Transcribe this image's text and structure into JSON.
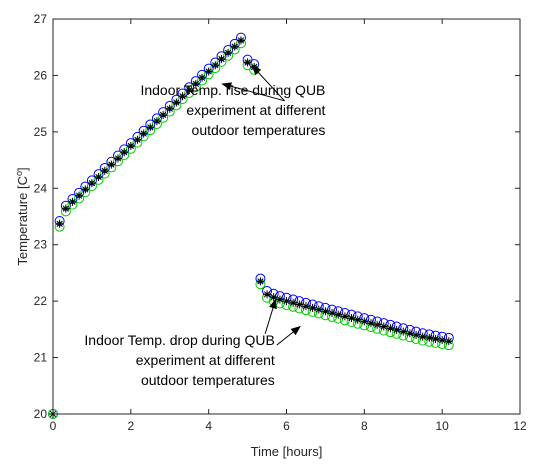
{
  "chart_data": {
    "type": "scatter",
    "xlabel": "Time [hours]",
    "ylabel": "Temperature [C",
    "ylabel_superscript": "o",
    "ylabel_suffix": "]",
    "xlim": [
      0,
      12
    ],
    "ylim": [
      20,
      27
    ],
    "x_ticks": [
      0,
      2,
      4,
      6,
      8,
      10,
      12
    ],
    "y_ticks": [
      20,
      21,
      22,
      23,
      24,
      25,
      26,
      27
    ],
    "x_tick_labels": [
      "0",
      "2",
      "4",
      "6",
      "8",
      "10",
      "12"
    ],
    "y_tick_labels": [
      "20",
      "21",
      "22",
      "23",
      "24",
      "25",
      "26",
      "27"
    ],
    "grid": false,
    "series": [
      {
        "marker": "circle",
        "color": "#0000ff",
        "points": [
          [
            0,
            20.0
          ],
          [
            0.17,
            23.42
          ],
          [
            0.33,
            23.69
          ],
          [
            0.5,
            23.81
          ],
          [
            0.67,
            23.92
          ],
          [
            0.83,
            24.03
          ],
          [
            1.0,
            24.14
          ],
          [
            1.17,
            24.25
          ],
          [
            1.33,
            24.36
          ],
          [
            1.5,
            24.47
          ],
          [
            1.67,
            24.58
          ],
          [
            1.83,
            24.69
          ],
          [
            2.0,
            24.8
          ],
          [
            2.17,
            24.91
          ],
          [
            2.33,
            25.02
          ],
          [
            2.5,
            25.13
          ],
          [
            2.67,
            25.24
          ],
          [
            2.83,
            25.35
          ],
          [
            3.0,
            25.46
          ],
          [
            3.17,
            25.57
          ],
          [
            3.33,
            25.68
          ],
          [
            3.5,
            25.79
          ],
          [
            3.67,
            25.9
          ],
          [
            3.83,
            26.01
          ],
          [
            4.0,
            26.12
          ],
          [
            4.17,
            26.23
          ],
          [
            4.33,
            26.34
          ],
          [
            4.5,
            26.45
          ],
          [
            4.67,
            26.56
          ],
          [
            4.83,
            26.67
          ],
          [
            5.0,
            26.28
          ],
          [
            5.17,
            26.2
          ],
          [
            5.33,
            22.4
          ],
          [
            5.5,
            22.18
          ],
          [
            5.67,
            22.13
          ],
          [
            5.83,
            22.09
          ],
          [
            6.0,
            22.06
          ],
          [
            6.17,
            22.03
          ],
          [
            6.33,
            22.0
          ],
          [
            6.5,
            21.97
          ],
          [
            6.67,
            21.94
          ],
          [
            6.83,
            21.91
          ],
          [
            7.0,
            21.88
          ],
          [
            7.17,
            21.85
          ],
          [
            7.33,
            21.82
          ],
          [
            7.5,
            21.79
          ],
          [
            7.67,
            21.76
          ],
          [
            7.83,
            21.73
          ],
          [
            8.0,
            21.7
          ],
          [
            8.17,
            21.67
          ],
          [
            8.33,
            21.64
          ],
          [
            8.5,
            21.61
          ],
          [
            8.67,
            21.58
          ],
          [
            8.83,
            21.55
          ],
          [
            9.0,
            21.52
          ],
          [
            9.17,
            21.49
          ],
          [
            9.33,
            21.46
          ],
          [
            9.5,
            21.43
          ],
          [
            9.67,
            21.41
          ],
          [
            9.83,
            21.39
          ],
          [
            10.0,
            21.37
          ],
          [
            10.17,
            21.35
          ]
        ]
      },
      {
        "marker": "circle",
        "color": "#00cc00",
        "points": [
          [
            0,
            20.0
          ],
          [
            0.17,
            23.32
          ],
          [
            0.33,
            23.59
          ],
          [
            0.5,
            23.71
          ],
          [
            0.67,
            23.82
          ],
          [
            0.83,
            23.93
          ],
          [
            1.0,
            24.04
          ],
          [
            1.17,
            24.15
          ],
          [
            1.33,
            24.26
          ],
          [
            1.5,
            24.37
          ],
          [
            1.67,
            24.48
          ],
          [
            1.83,
            24.59
          ],
          [
            2.0,
            24.7
          ],
          [
            2.17,
            24.81
          ],
          [
            2.33,
            24.92
          ],
          [
            2.5,
            25.03
          ],
          [
            2.67,
            25.14
          ],
          [
            2.83,
            25.25
          ],
          [
            3.0,
            25.36
          ],
          [
            3.17,
            25.47
          ],
          [
            3.33,
            25.58
          ],
          [
            3.5,
            25.69
          ],
          [
            3.67,
            25.8
          ],
          [
            3.83,
            25.91
          ],
          [
            4.0,
            26.02
          ],
          [
            4.17,
            26.13
          ],
          [
            4.33,
            26.24
          ],
          [
            4.5,
            26.35
          ],
          [
            4.67,
            26.46
          ],
          [
            4.83,
            26.57
          ],
          [
            5.0,
            26.18
          ],
          [
            5.17,
            26.1
          ],
          [
            5.33,
            22.3
          ],
          [
            5.5,
            22.06
          ],
          [
            5.67,
            22.0
          ],
          [
            5.83,
            21.96
          ],
          [
            6.0,
            21.93
          ],
          [
            6.17,
            21.9
          ],
          [
            6.33,
            21.87
          ],
          [
            6.5,
            21.84
          ],
          [
            6.67,
            21.81
          ],
          [
            6.83,
            21.78
          ],
          [
            7.0,
            21.75
          ],
          [
            7.17,
            21.72
          ],
          [
            7.33,
            21.69
          ],
          [
            7.5,
            21.66
          ],
          [
            7.67,
            21.63
          ],
          [
            7.83,
            21.6
          ],
          [
            8.0,
            21.57
          ],
          [
            8.17,
            21.54
          ],
          [
            8.33,
            21.51
          ],
          [
            8.5,
            21.48
          ],
          [
            8.67,
            21.45
          ],
          [
            8.83,
            21.42
          ],
          [
            9.0,
            21.39
          ],
          [
            9.17,
            21.36
          ],
          [
            9.33,
            21.33
          ],
          [
            9.5,
            21.3
          ],
          [
            9.67,
            21.28
          ],
          [
            9.83,
            21.26
          ],
          [
            10.0,
            21.24
          ],
          [
            10.17,
            21.22
          ]
        ]
      },
      {
        "marker": "asterisk",
        "color": "#000000",
        "points": [
          [
            0,
            20.0
          ],
          [
            0.17,
            23.37
          ],
          [
            0.33,
            23.64
          ],
          [
            0.5,
            23.76
          ],
          [
            0.67,
            23.87
          ],
          [
            0.83,
            23.98
          ],
          [
            1.0,
            24.09
          ],
          [
            1.17,
            24.2
          ],
          [
            1.33,
            24.31
          ],
          [
            1.5,
            24.42
          ],
          [
            1.67,
            24.53
          ],
          [
            1.83,
            24.64
          ],
          [
            2.0,
            24.75
          ],
          [
            2.17,
            24.86
          ],
          [
            2.33,
            24.97
          ],
          [
            2.5,
            25.08
          ],
          [
            2.67,
            25.19
          ],
          [
            2.83,
            25.3
          ],
          [
            3.0,
            25.41
          ],
          [
            3.17,
            25.52
          ],
          [
            3.33,
            25.63
          ],
          [
            3.5,
            25.74
          ],
          [
            3.67,
            25.85
          ],
          [
            3.83,
            25.96
          ],
          [
            4.0,
            26.07
          ],
          [
            4.17,
            26.18
          ],
          [
            4.33,
            26.29
          ],
          [
            4.5,
            26.4
          ],
          [
            4.67,
            26.51
          ],
          [
            4.83,
            26.62
          ],
          [
            5.0,
            26.23
          ],
          [
            5.17,
            26.15
          ],
          [
            5.33,
            22.35
          ],
          [
            5.5,
            22.12
          ],
          [
            5.67,
            22.07
          ],
          [
            5.83,
            22.03
          ],
          [
            6.0,
            22.0
          ],
          [
            6.17,
            21.97
          ],
          [
            6.33,
            21.94
          ],
          [
            6.5,
            21.91
          ],
          [
            6.67,
            21.88
          ],
          [
            6.83,
            21.85
          ],
          [
            7.0,
            21.82
          ],
          [
            7.17,
            21.79
          ],
          [
            7.33,
            21.76
          ],
          [
            7.5,
            21.73
          ],
          [
            7.67,
            21.7
          ],
          [
            7.83,
            21.67
          ],
          [
            8.0,
            21.64
          ],
          [
            8.17,
            21.61
          ],
          [
            8.33,
            21.58
          ],
          [
            8.5,
            21.55
          ],
          [
            8.67,
            21.52
          ],
          [
            8.83,
            21.49
          ],
          [
            9.0,
            21.46
          ],
          [
            9.17,
            21.43
          ],
          [
            9.33,
            21.4
          ],
          [
            9.5,
            21.37
          ],
          [
            9.67,
            21.35
          ],
          [
            9.83,
            21.33
          ],
          [
            10.0,
            21.31
          ],
          [
            10.17,
            21.29
          ]
        ]
      }
    ],
    "annotations": [
      {
        "lines": [
          "Indoor Temp. rise during QUB",
          "experiment at different",
          "outdoor temperatures"
        ],
        "anchor": [
          7.0,
          25.65
        ],
        "align": "end",
        "arrows": [
          [
            [
              5.95,
              25.55
            ],
            [
              5.12,
              26.17
            ]
          ],
          [
            [
              5.95,
              25.55
            ],
            [
              4.35,
              25.85
            ]
          ]
        ]
      },
      {
        "lines": [
          "Indoor Temp. drop during QUB",
          "experiment at different",
          "outdoor temperatures"
        ],
        "anchor": [
          5.7,
          21.22
        ],
        "align": "end",
        "arrows": [
          [
            [
              5.45,
              21.42
            ],
            [
              5.72,
              22.03
            ]
          ],
          [
            [
              5.75,
              21.22
            ],
            [
              6.35,
              21.55
            ]
          ]
        ]
      }
    ]
  }
}
